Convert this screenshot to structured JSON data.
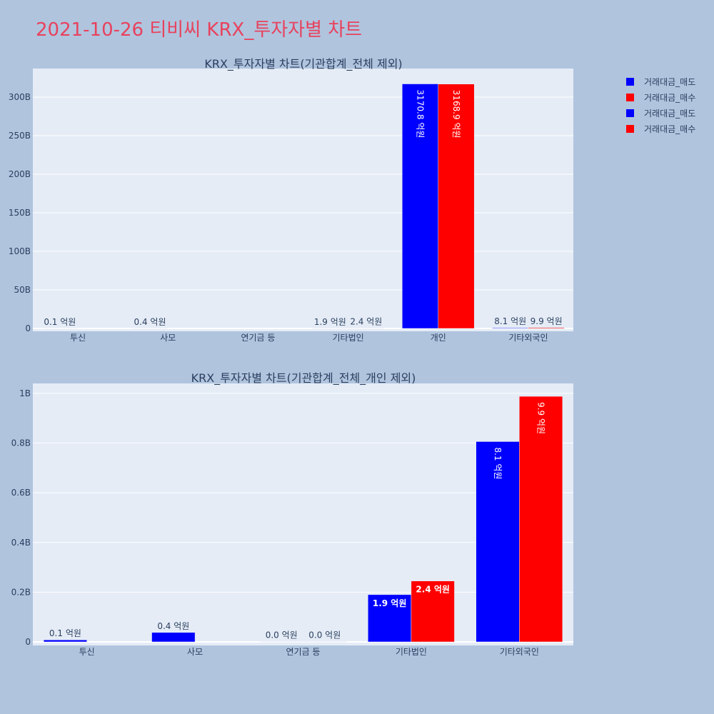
{
  "title": "2021-10-26 티비씨 KRX_투자자별 차트",
  "legend": [
    {
      "label": "거래대금_매도",
      "color": "#0000ff"
    },
    {
      "label": "거래대금_매수",
      "color": "#ff0000"
    },
    {
      "label": "거래대금_매도",
      "color": "#0000ff"
    },
    {
      "label": "거래대금_매수",
      "color": "#ff0000"
    }
  ],
  "chart_data": [
    {
      "type": "bar",
      "title": "KRX_투자자별 차트(기관합계_전체 제외)",
      "categories": [
        "투신",
        "사모",
        "연기금 등",
        "기타법인",
        "개인",
        "기타외국인"
      ],
      "series": [
        {
          "name": "거래대금_매도",
          "color": "#0000ff",
          "values": [
            0.01,
            0.04,
            0.0,
            0.19,
            317.08,
            0.81
          ],
          "labels": [
            "0.1 억원",
            "0.4 억원",
            "",
            "1.9 억원",
            "3170.8 억원",
            "8.1 억원"
          ]
        },
        {
          "name": "거래대금_매수",
          "color": "#ff0000",
          "values": [
            0.0,
            0.0,
            0.0,
            0.24,
            316.89,
            0.99
          ],
          "labels": [
            "",
            "",
            "",
            "2.4 억원",
            "3168.9 억원",
            "9.9 억원"
          ]
        }
      ],
      "unit": "B",
      "ylim": [
        0,
        337
      ],
      "yticks": [
        {
          "value": 0,
          "label": "0"
        },
        {
          "value": 50,
          "label": "50B"
        },
        {
          "value": 100,
          "label": "100B"
        },
        {
          "value": 150,
          "label": "150B"
        },
        {
          "value": 200,
          "label": "200B"
        },
        {
          "value": 250,
          "label": "250B"
        },
        {
          "value": 300,
          "label": "300B"
        }
      ],
      "grid": true
    },
    {
      "type": "bar",
      "title": "KRX_투자자별 차트(기관합계_전체_개인 제외)",
      "categories": [
        "투신",
        "사모",
        "연기금 등",
        "기타법인",
        "기타외국인"
      ],
      "series": [
        {
          "name": "거래대금_매도",
          "color": "#0000ff",
          "values": [
            0.008,
            0.038,
            0.001,
            0.19,
            0.806
          ],
          "labels": [
            "0.1 억원",
            "0.4 억원",
            "0.0 억원",
            "1.9 억원",
            "8.1 억원"
          ]
        },
        {
          "name": "거래대금_매수",
          "color": "#ff0000",
          "values": [
            0.0,
            0.0,
            0.001,
            0.245,
            0.988
          ],
          "labels": [
            "",
            "",
            "0.0 억원",
            "2.4 억원",
            "9.9 억원"
          ]
        }
      ],
      "unit": "B",
      "ylim": [
        0,
        1.04
      ],
      "yticks": [
        {
          "value": 0,
          "label": "0"
        },
        {
          "value": 0.2,
          "label": "0.2B"
        },
        {
          "value": 0.4,
          "label": "0.4B"
        },
        {
          "value": 0.6,
          "label": "0.6B"
        },
        {
          "value": 0.8,
          "label": "0.8B"
        },
        {
          "value": 1.0,
          "label": "1B"
        }
      ],
      "grid": true
    }
  ]
}
